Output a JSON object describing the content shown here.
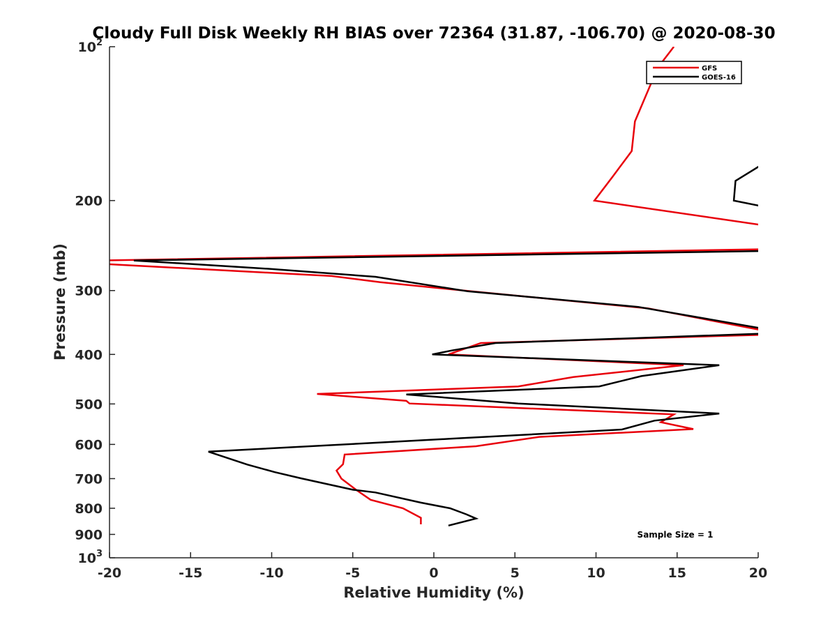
{
  "chart_data": {
    "type": "line",
    "title": "Cloudy Full Disk Weekly RH BIAS over 72364 (31.87, -106.70) @ 2020-08-30",
    "xlabel": "Relative Humidity (%)",
    "ylabel": "Pressure (mb)",
    "xlim": [
      -20,
      20
    ],
    "ylim": [
      100,
      1000
    ],
    "y_scale": "log",
    "y_reversed": true,
    "x_ticks": [
      "-20",
      "-15",
      "-10",
      "-5",
      "0",
      "5",
      "10",
      "15",
      "20"
    ],
    "y_ticks": [
      {
        "value": 100,
        "base": "10",
        "exp": "2"
      },
      {
        "value": 200,
        "label": "200"
      },
      {
        "value": 300,
        "label": "300"
      },
      {
        "value": 400,
        "label": "400"
      },
      {
        "value": 500,
        "label": "500"
      },
      {
        "value": 600,
        "label": "600"
      },
      {
        "value": 700,
        "label": "700"
      },
      {
        "value": 800,
        "label": "800"
      },
      {
        "value": 900,
        "label": "900"
      },
      {
        "value": 1000,
        "base": "10",
        "exp": "3"
      }
    ],
    "legend_position": "top-right",
    "grid": false,
    "annotation": "Sample Size = 1",
    "series": [
      {
        "name": "GFS",
        "color": "#e8000b",
        "points": [
          [
            14.8,
            100
          ],
          [
            13.8,
            110
          ],
          [
            12.4,
            140
          ],
          [
            12.2,
            160
          ],
          [
            11.0,
            180
          ],
          [
            9.9,
            200
          ],
          [
            20.5,
            224
          ],
          [
            20.5,
            249
          ],
          [
            -20.5,
            262
          ],
          [
            -20.5,
            266
          ],
          [
            -6.3,
            281
          ],
          [
            -3.3,
            289
          ],
          [
            2.3,
            301
          ],
          [
            13.2,
            325
          ],
          [
            20.5,
            360
          ],
          [
            20.5,
            366
          ],
          [
            2.9,
            380
          ],
          [
            0.9,
            400
          ],
          [
            15.4,
            420
          ],
          [
            8.6,
            443
          ],
          [
            5.2,
            462
          ],
          [
            -7.2,
            478
          ],
          [
            -1.7,
            493
          ],
          [
            -1.5,
            499
          ],
          [
            14.8,
            524
          ],
          [
            14.0,
            543
          ],
          [
            16.0,
            560
          ],
          [
            6.5,
            580
          ],
          [
            2.6,
            605
          ],
          [
            -5.5,
            628
          ],
          [
            -5.6,
            656
          ],
          [
            -6.0,
            675
          ],
          [
            -5.7,
            700
          ],
          [
            -4.8,
            736
          ],
          [
            -3.9,
            770
          ],
          [
            -1.9,
            800
          ],
          [
            -0.8,
            835
          ],
          [
            -0.8,
            860
          ]
        ]
      },
      {
        "name": "GOES-16",
        "color": "#000000",
        "points": [
          [
            20.5,
            168
          ],
          [
            18.6,
            183
          ],
          [
            18.5,
            200
          ],
          [
            20.5,
            206
          ],
          [
            20.5,
            251
          ],
          [
            -18.5,
            262
          ],
          [
            -10.2,
            272
          ],
          [
            -3.6,
            282
          ],
          [
            2.1,
            301
          ],
          [
            12.6,
            323
          ],
          [
            20.5,
            357
          ],
          [
            20.5,
            364
          ],
          [
            3.8,
            380
          ],
          [
            1.1,
            393
          ],
          [
            -0.1,
            400
          ],
          [
            17.6,
            420
          ],
          [
            12.8,
            441
          ],
          [
            10.2,
            462
          ],
          [
            -1.7,
            479
          ],
          [
            5.2,
            499
          ],
          [
            17.6,
            522
          ],
          [
            13.6,
            539
          ],
          [
            11.6,
            561
          ],
          [
            1.0,
            585
          ],
          [
            -13.9,
            620
          ],
          [
            -11.5,
            657
          ],
          [
            -9.8,
            680
          ],
          [
            -8.2,
            699
          ],
          [
            -5.0,
            736
          ],
          [
            -3.6,
            745
          ],
          [
            -0.8,
            780
          ],
          [
            1.0,
            800
          ],
          [
            2.0,
            822
          ],
          [
            2.6,
            838
          ],
          [
            0.9,
            865
          ]
        ]
      }
    ]
  }
}
